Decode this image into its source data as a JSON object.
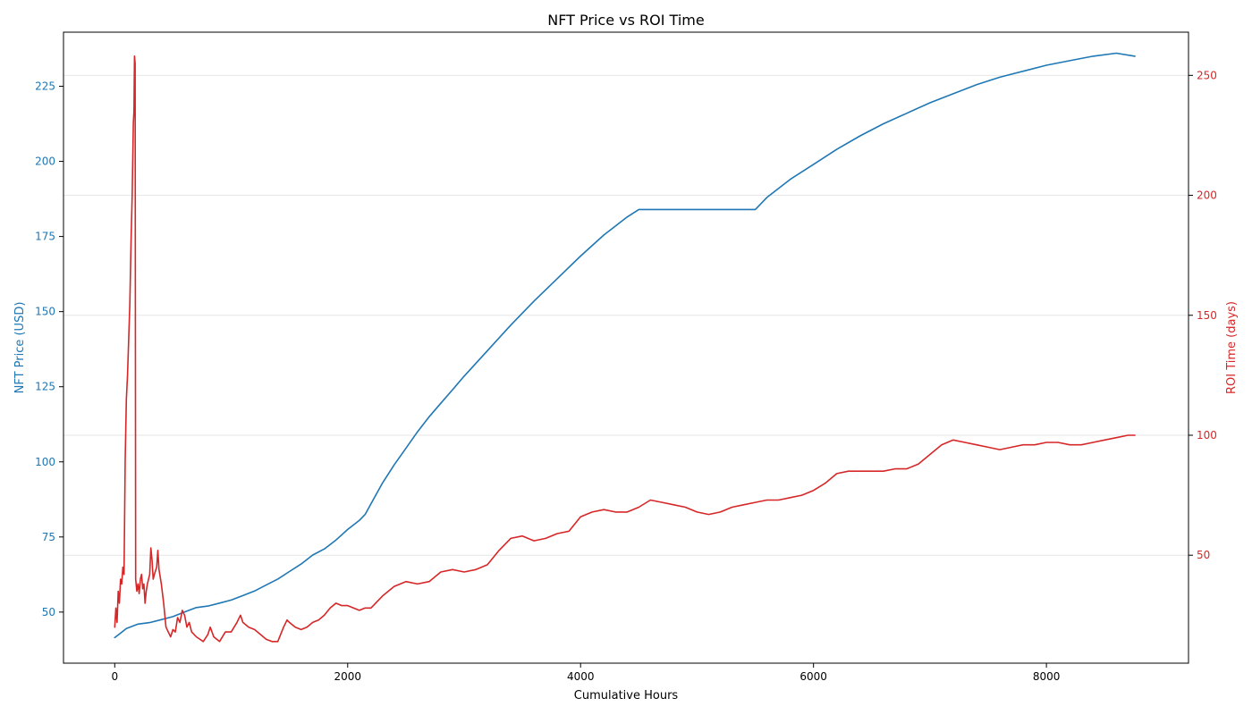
{
  "chart_data": {
    "type": "line",
    "title": "NFT Price vs ROI Time",
    "xlabel": "Cumulative Hours",
    "xlim": [
      -440,
      9220
    ],
    "xticks": [
      0,
      2000,
      4000,
      6000,
      8000
    ],
    "grid": "horizontal-light",
    "axes": {
      "left": {
        "label": "NFT Price (USD)",
        "color": "#1f77b4",
        "ylim": [
          33,
          243
        ],
        "ticks": [
          50,
          75,
          100,
          125,
          150,
          175,
          200,
          225
        ]
      },
      "right": {
        "label": "ROI Time (days)",
        "color": "#d62728",
        "ylim": [
          5,
          268
        ],
        "ticks": [
          50,
          100,
          150,
          200,
          250
        ]
      }
    },
    "series": [
      {
        "axis": "left",
        "color": "#1f77b4",
        "points": [
          [
            0,
            41.5
          ],
          [
            50,
            43
          ],
          [
            100,
            44.5
          ],
          [
            200,
            46
          ],
          [
            300,
            46.5
          ],
          [
            400,
            47.5
          ],
          [
            500,
            48.5
          ],
          [
            600,
            50
          ],
          [
            700,
            51.5
          ],
          [
            800,
            52
          ],
          [
            900,
            53
          ],
          [
            1000,
            54
          ],
          [
            1100,
            55.5
          ],
          [
            1200,
            57
          ],
          [
            1300,
            59
          ],
          [
            1400,
            61
          ],
          [
            1500,
            63.5
          ],
          [
            1600,
            66
          ],
          [
            1700,
            69
          ],
          [
            1800,
            71
          ],
          [
            1900,
            74
          ],
          [
            2000,
            77.5
          ],
          [
            2100,
            80.5
          ],
          [
            2150,
            82.5
          ],
          [
            2200,
            86
          ],
          [
            2300,
            93
          ],
          [
            2400,
            99
          ],
          [
            2500,
            104.5
          ],
          [
            2600,
            110
          ],
          [
            2700,
            115
          ],
          [
            2800,
            119.5
          ],
          [
            2900,
            124
          ],
          [
            3000,
            128.5
          ],
          [
            3200,
            137
          ],
          [
            3400,
            145.5
          ],
          [
            3600,
            153.5
          ],
          [
            3800,
            161
          ],
          [
            4000,
            168.5
          ],
          [
            4200,
            175.5
          ],
          [
            4400,
            181.5
          ],
          [
            4500,
            184
          ],
          [
            5000,
            184
          ],
          [
            5500,
            184
          ],
          [
            5600,
            188
          ],
          [
            5800,
            194
          ],
          [
            6000,
            199
          ],
          [
            6200,
            204
          ],
          [
            6400,
            208.5
          ],
          [
            6600,
            212.5
          ],
          [
            6800,
            216
          ],
          [
            7000,
            219.5
          ],
          [
            7200,
            222.5
          ],
          [
            7400,
            225.5
          ],
          [
            7600,
            228
          ],
          [
            7800,
            230
          ],
          [
            8000,
            232
          ],
          [
            8200,
            233.5
          ],
          [
            8400,
            235
          ],
          [
            8600,
            236
          ],
          [
            8760,
            235
          ]
        ]
      },
      {
        "axis": "right",
        "color": "#d62728",
        "points": [
          [
            0,
            20
          ],
          [
            10,
            28
          ],
          [
            20,
            22
          ],
          [
            30,
            35
          ],
          [
            40,
            30
          ],
          [
            50,
            40
          ],
          [
            60,
            38
          ],
          [
            70,
            45
          ],
          [
            80,
            42
          ],
          [
            90,
            90
          ],
          [
            100,
            115
          ],
          [
            110,
            125
          ],
          [
            120,
            140
          ],
          [
            130,
            155
          ],
          [
            140,
            180
          ],
          [
            150,
            200
          ],
          [
            160,
            230
          ],
          [
            165,
            235
          ],
          [
            170,
            258
          ],
          [
            175,
            255
          ],
          [
            180,
            40
          ],
          [
            190,
            35
          ],
          [
            200,
            38
          ],
          [
            210,
            34
          ],
          [
            220,
            40
          ],
          [
            230,
            42
          ],
          [
            240,
            36
          ],
          [
            250,
            38
          ],
          [
            260,
            30
          ],
          [
            270,
            35
          ],
          [
            280,
            38
          ],
          [
            300,
            42
          ],
          [
            310,
            53
          ],
          [
            320,
            48
          ],
          [
            330,
            40
          ],
          [
            340,
            42
          ],
          [
            360,
            45
          ],
          [
            370,
            52
          ],
          [
            380,
            44
          ],
          [
            400,
            38
          ],
          [
            420,
            30
          ],
          [
            440,
            20
          ],
          [
            460,
            18
          ],
          [
            480,
            16
          ],
          [
            500,
            19
          ],
          [
            520,
            18
          ],
          [
            540,
            24
          ],
          [
            560,
            22
          ],
          [
            580,
            27
          ],
          [
            600,
            25
          ],
          [
            620,
            20
          ],
          [
            640,
            22
          ],
          [
            660,
            18
          ],
          [
            700,
            16
          ],
          [
            760,
            14
          ],
          [
            800,
            17
          ],
          [
            820,
            20
          ],
          [
            850,
            16
          ],
          [
            900,
            14
          ],
          [
            950,
            18
          ],
          [
            1000,
            18
          ],
          [
            1050,
            22
          ],
          [
            1080,
            25
          ],
          [
            1100,
            22
          ],
          [
            1150,
            20
          ],
          [
            1200,
            19
          ],
          [
            1250,
            17
          ],
          [
            1300,
            15
          ],
          [
            1350,
            14
          ],
          [
            1400,
            14
          ],
          [
            1450,
            20
          ],
          [
            1480,
            23
          ],
          [
            1500,
            22
          ],
          [
            1550,
            20
          ],
          [
            1600,
            19
          ],
          [
            1650,
            20
          ],
          [
            1700,
            22
          ],
          [
            1750,
            23
          ],
          [
            1800,
            25
          ],
          [
            1850,
            28
          ],
          [
            1900,
            30
          ],
          [
            1950,
            29
          ],
          [
            2000,
            29
          ],
          [
            2100,
            27
          ],
          [
            2150,
            28
          ],
          [
            2200,
            28
          ],
          [
            2300,
            33
          ],
          [
            2400,
            37
          ],
          [
            2500,
            39
          ],
          [
            2600,
            38
          ],
          [
            2700,
            39
          ],
          [
            2800,
            43
          ],
          [
            2900,
            44
          ],
          [
            3000,
            43
          ],
          [
            3100,
            44
          ],
          [
            3200,
            46
          ],
          [
            3300,
            52
          ],
          [
            3400,
            57
          ],
          [
            3500,
            58
          ],
          [
            3600,
            56
          ],
          [
            3700,
            57
          ],
          [
            3800,
            59
          ],
          [
            3900,
            60
          ],
          [
            4000,
            66
          ],
          [
            4100,
            68
          ],
          [
            4200,
            69
          ],
          [
            4300,
            68
          ],
          [
            4400,
            68
          ],
          [
            4500,
            70
          ],
          [
            4600,
            73
          ],
          [
            4700,
            72
          ],
          [
            4800,
            71
          ],
          [
            4900,
            70
          ],
          [
            5000,
            68
          ],
          [
            5100,
            67
          ],
          [
            5200,
            68
          ],
          [
            5300,
            70
          ],
          [
            5400,
            71
          ],
          [
            5500,
            72
          ],
          [
            5600,
            73
          ],
          [
            5700,
            73
          ],
          [
            5800,
            74
          ],
          [
            5900,
            75
          ],
          [
            6000,
            77
          ],
          [
            6100,
            80
          ],
          [
            6200,
            84
          ],
          [
            6300,
            85
          ],
          [
            6400,
            85
          ],
          [
            6500,
            85
          ],
          [
            6600,
            85
          ],
          [
            6700,
            86
          ],
          [
            6800,
            86
          ],
          [
            6900,
            88
          ],
          [
            7000,
            92
          ],
          [
            7100,
            96
          ],
          [
            7200,
            98
          ],
          [
            7300,
            97
          ],
          [
            7400,
            96
          ],
          [
            7500,
            95
          ],
          [
            7600,
            94
          ],
          [
            7700,
            95
          ],
          [
            7800,
            96
          ],
          [
            7900,
            96
          ],
          [
            8000,
            97
          ],
          [
            8100,
            97
          ],
          [
            8200,
            96
          ],
          [
            8300,
            96
          ],
          [
            8400,
            97
          ],
          [
            8500,
            98
          ],
          [
            8600,
            99
          ],
          [
            8700,
            100
          ],
          [
            8760,
            100
          ]
        ]
      }
    ]
  }
}
